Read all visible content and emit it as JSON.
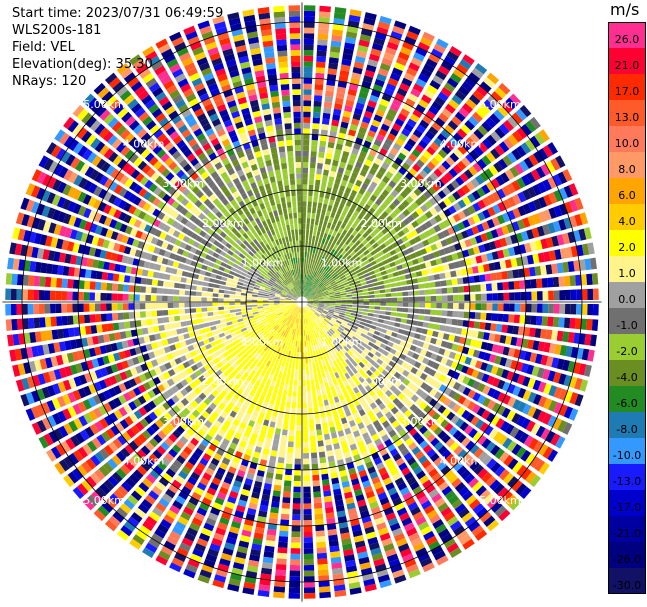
{
  "info": {
    "start_time": "Start time: 2023/07/31 06:49:59",
    "instrument": "WLS200s-181",
    "field": "Field: VEL",
    "elevation": "Elevation(deg): 35.30",
    "nrays": "NRays: 120"
  },
  "colorbar": {
    "unit": "m/s",
    "levels": [
      {
        "label": "26.0",
        "value": 26,
        "color": "#ff2f92"
      },
      {
        "label": "21.0",
        "value": 21,
        "color": "#ff0033"
      },
      {
        "label": "17.0",
        "value": 17,
        "color": "#ff2a00"
      },
      {
        "label": "13.0",
        "value": 13,
        "color": "#ff5a2a"
      },
      {
        "label": "10.0",
        "value": 10,
        "color": "#ff7a5a"
      },
      {
        "label": "8.0",
        "value": 8,
        "color": "#ff9966"
      },
      {
        "label": "6.0",
        "value": 6,
        "color": "#ffa500"
      },
      {
        "label": "4.0",
        "value": 4,
        "color": "#ffcc00"
      },
      {
        "label": "2.0",
        "value": 2,
        "color": "#ffff00"
      },
      {
        "label": "1.0",
        "value": 1,
        "color": "#fff38a"
      },
      {
        "label": "0.0",
        "value": 0,
        "color": "#a0a0a0"
      },
      {
        "label": "-1.0",
        "value": -1,
        "color": "#707070"
      },
      {
        "label": "-2.0",
        "value": -2,
        "color": "#9acd32"
      },
      {
        "label": "-4.0",
        "value": -4,
        "color": "#6b8e23"
      },
      {
        "label": "-6.0",
        "value": -6,
        "color": "#228b22"
      },
      {
        "label": "-8.0",
        "value": -8,
        "color": "#1f7bb4"
      },
      {
        "label": "-10.0",
        "value": -10,
        "color": "#3399ff"
      },
      {
        "label": "-13.0",
        "value": -13,
        "color": "#1a1aff"
      },
      {
        "label": "-17.0",
        "value": -17,
        "color": "#0000cc"
      },
      {
        "label": "-21.0",
        "value": -21,
        "color": "#0000a0"
      },
      {
        "label": "-26.0",
        "value": -26,
        "color": "#000080"
      },
      {
        "label": "-30.0",
        "value": -30,
        "color": "#111166"
      }
    ]
  },
  "chart_data": {
    "type": "heatmap",
    "projection": "polar PPI",
    "field": "VEL",
    "unit": "m/s",
    "rays": 120,
    "range_rings_km": [
      1.0,
      2.0,
      3.0,
      4.0,
      5.0
    ],
    "ring_labels": [
      "1.00km",
      "2.00km",
      "3.00km",
      "4.00km",
      "5.00km"
    ],
    "max_range_km": 5.35,
    "pattern": {
      "north_sector": "negative velocities (green, -4 to -8 m/s) within ~2 km",
      "south_east_sector": "positive velocities (yellow/orange, +1 to +8 m/s) within ~2 km",
      "beyond_3km": "noisy random values across full color scale"
    }
  }
}
